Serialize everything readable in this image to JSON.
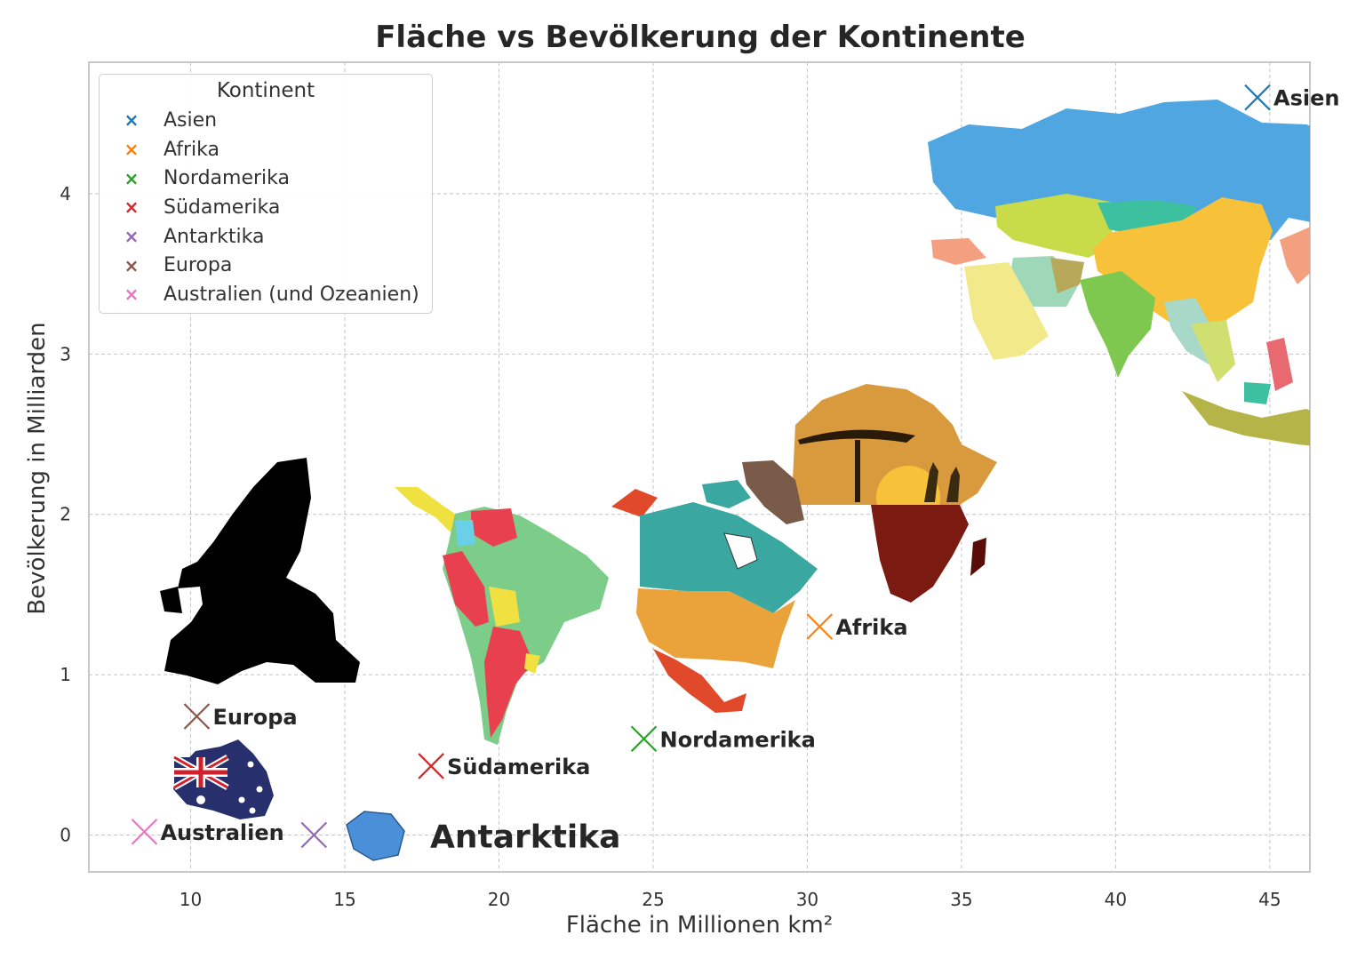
{
  "chart_data": {
    "type": "scatter",
    "title": "Fläche vs Bevölkerung der Kontinente",
    "xlabel": "Fläche in Millionen km²",
    "ylabel": "Bevölkerung in Milliarden",
    "xlim": [
      6.7,
      46.3
    ],
    "ylim": [
      -0.23,
      4.82
    ],
    "xticks": [
      10,
      15,
      20,
      25,
      30,
      35,
      40,
      45
    ],
    "yticks": [
      0,
      1,
      2,
      3,
      4
    ],
    "grid": true,
    "legend": {
      "title": "Kontinent",
      "placement": "top-left"
    },
    "series": [
      {
        "name": "Asien",
        "x": 44.6,
        "y": 4.6,
        "color": "#1f77b4",
        "label": "Asien",
        "label_size": "normal"
      },
      {
        "name": "Afrika",
        "x": 30.4,
        "y": 1.3,
        "color": "#ff7f0e",
        "label": "Afrika",
        "label_size": "normal"
      },
      {
        "name": "Nordamerika",
        "x": 24.7,
        "y": 0.6,
        "color": "#2ca02c",
        "label": "Nordamerika",
        "label_size": "normal"
      },
      {
        "name": "Südamerika",
        "x": 17.8,
        "y": 0.43,
        "color": "#d62728",
        "label": "Südamerika",
        "label_size": "normal"
      },
      {
        "name": "Antarktika",
        "x": 14.0,
        "y": 0.0,
        "color": "#9467bd",
        "label": "Antarktika",
        "label_size": "large"
      },
      {
        "name": "Europa",
        "x": 10.2,
        "y": 0.74,
        "color": "#8c564b",
        "label": "Europa",
        "label_size": "normal"
      },
      {
        "name": "Australien (und Ozeanien)",
        "x": 8.5,
        "y": 0.02,
        "color": "#e377c2",
        "label": "Australien",
        "label_size": "normal"
      }
    ],
    "continent_pictures": [
      {
        "continent": "Asien",
        "icon": "asia-map-icon",
        "colors": [
          "#4fa6e0",
          "#f7c23a",
          "#7ec850",
          "#c8dc4a",
          "#9ed8b8",
          "#f4a080",
          "#3cc0a0"
        ]
      },
      {
        "continent": "Afrika",
        "icon": "africa-sunset-map-icon",
        "colors": [
          "#d89a3c",
          "#f7b23a",
          "#7a1a10",
          "#3a0808"
        ]
      },
      {
        "continent": "Nordamerika",
        "icon": "north-america-map-icon",
        "colors": [
          "#3aa8a0",
          "#eaa23a",
          "#e04a2a",
          "#7a5a48"
        ]
      },
      {
        "continent": "Südamerika",
        "icon": "south-america-map-icon",
        "colors": [
          "#7ccc8a",
          "#e8404f",
          "#f0e040",
          "#6ad0e8"
        ]
      },
      {
        "continent": "Antarktika",
        "icon": "antarctica-map-icon",
        "colors": [
          "#4a90d8"
        ]
      },
      {
        "continent": "Europa",
        "icon": "europe-map-icon",
        "colors": [
          "#000000"
        ]
      },
      {
        "continent": "Australien (und Ozeanien)",
        "icon": "australia-flag-map-icon",
        "colors": [
          "#27306c",
          "#d0202c",
          "#ffffff"
        ]
      }
    ]
  }
}
